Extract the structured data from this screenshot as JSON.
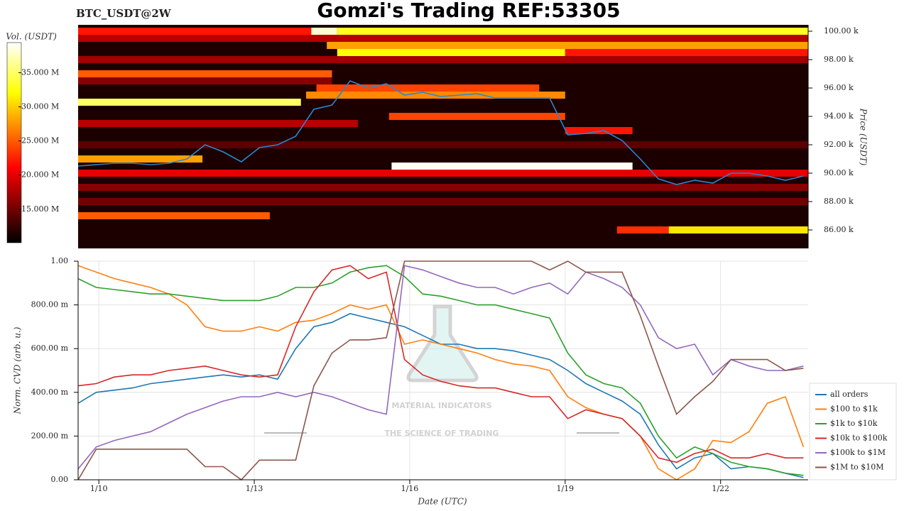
{
  "title": "Gomzi's Trading REF:53305",
  "watermark": {
    "brand": "MATERIAL INDICATORS",
    "tagline": "THE SCIENCE OF TRADING"
  },
  "chart_data": [
    {
      "type": "heatmap",
      "title": "BTC_USDT@2W",
      "ylabel": "Price (USDT)",
      "xlim": [
        9.6,
        23.69
      ],
      "ylim": [
        84700,
        100450
      ],
      "yticks": [
        {
          "value": 100000,
          "label": "100.00 k"
        },
        {
          "value": 98000,
          "label": "98.00 k"
        },
        {
          "value": 96000,
          "label": "96.00 k"
        },
        {
          "value": 94000,
          "label": "94.00 k"
        },
        {
          "value": 92000,
          "label": "92.00 k"
        },
        {
          "value": 90000,
          "label": "90.00 k"
        },
        {
          "value": 88000,
          "label": "88.00 k"
        },
        {
          "value": 86000,
          "label": "86.00 k"
        }
      ],
      "colorbar": {
        "label": "Vol. (USDT)",
        "lim": [
          10100000,
          39400000
        ],
        "ticks": [
          {
            "value": 35000000,
            "label": "35.000 M"
          },
          {
            "value": 30000000,
            "label": "30.000 M"
          },
          {
            "value": 25000000,
            "label": "25.000 M"
          },
          {
            "value": 20000000,
            "label": "20.000 M"
          },
          {
            "value": 15000000,
            "label": "15.000 M"
          }
        ]
      },
      "bands": [
        {
          "price": 92000,
          "start": 9.6,
          "end": 23.69,
          "vol": 14000000
        },
        {
          "price": 93500,
          "start": 9.6,
          "end": 15.0,
          "vol": 18000000
        },
        {
          "price": 100000,
          "start": 9.6,
          "end": 14.1,
          "vol": 22000000
        },
        {
          "price": 100000,
          "start": 14.1,
          "end": 14.6,
          "vol": 38000000
        },
        {
          "price": 100000,
          "start": 14.6,
          "end": 23.69,
          "vol": 33000000
        },
        {
          "price": 99500,
          "start": 9.6,
          "end": 23.69,
          "vol": 18000000
        },
        {
          "price": 99000,
          "start": 14.4,
          "end": 23.69,
          "vol": 28000000
        },
        {
          "price": 98500,
          "start": 14.6,
          "end": 19.0,
          "vol": 32000000
        },
        {
          "price": 98500,
          "start": 19.0,
          "end": 23.69,
          "vol": 22000000
        },
        {
          "price": 98000,
          "start": 9.6,
          "end": 23.69,
          "vol": 17000000
        },
        {
          "price": 97000,
          "start": 9.6,
          "end": 14.5,
          "vol": 25000000
        },
        {
          "price": 96500,
          "start": 9.6,
          "end": 14.5,
          "vol": 16000000
        },
        {
          "price": 96000,
          "start": 14.2,
          "end": 18.5,
          "vol": 24000000
        },
        {
          "price": 95500,
          "start": 14.0,
          "end": 19.0,
          "vol": 27000000
        },
        {
          "price": 95000,
          "start": 9.6,
          "end": 13.9,
          "vol": 35000000
        },
        {
          "price": 94000,
          "start": 15.6,
          "end": 19.0,
          "vol": 24000000
        },
        {
          "price": 93000,
          "start": 19.0,
          "end": 20.3,
          "vol": 22000000
        },
        {
          "price": 91000,
          "start": 9.6,
          "end": 12.0,
          "vol": 28000000
        },
        {
          "price": 90000,
          "start": 9.6,
          "end": 23.69,
          "vol": 20000000
        },
        {
          "price": 90500,
          "start": 15.65,
          "end": 20.3,
          "vol": 39000000
        },
        {
          "price": 89000,
          "start": 9.6,
          "end": 23.69,
          "vol": 16000000
        },
        {
          "price": 88000,
          "start": 9.6,
          "end": 23.69,
          "vol": 15000000
        },
        {
          "price": 87000,
          "start": 9.6,
          "end": 13.3,
          "vol": 25000000
        },
        {
          "price": 86000,
          "start": 20.0,
          "end": 21.0,
          "vol": 23000000
        },
        {
          "price": 86000,
          "start": 21.0,
          "end": 23.69,
          "vol": 31000000
        }
      ],
      "price_line": {
        "color": "#2a86d0",
        "x": [
          9.6,
          9.95,
          10.3,
          10.65,
          11.0,
          11.35,
          11.7,
          12.05,
          12.4,
          12.75,
          13.1,
          13.45,
          13.8,
          14.15,
          14.5,
          14.85,
          15.2,
          15.55,
          15.9,
          16.25,
          16.6,
          16.95,
          17.3,
          17.65,
          18.0,
          18.35,
          18.7,
          19.05,
          19.4,
          19.75,
          20.1,
          20.45,
          20.8,
          21.15,
          21.5,
          21.85,
          22.2,
          22.55,
          22.9,
          23.25,
          23.6
        ],
        "values": [
          90500,
          90600,
          90700,
          90700,
          90600,
          90700,
          91000,
          92000,
          91500,
          90800,
          91800,
          92000,
          92600,
          94500,
          94800,
          96500,
          96000,
          96300,
          95500,
          95700,
          95400,
          95500,
          95600,
          95300,
          95300,
          95300,
          95300,
          92700,
          92800,
          93000,
          92300,
          91000,
          89600,
          89200,
          89500,
          89300,
          90000,
          90000,
          89800,
          89500,
          89800
        ]
      }
    },
    {
      "type": "line",
      "xlabel": "Date (UTC)",
      "ylabel": "Norm. CVD (arb. u.)",
      "xlim": [
        9.6,
        23.69
      ],
      "ylim": [
        0,
        1
      ],
      "grid": true,
      "xticks": [
        {
          "value": 10,
          "label": "1/10"
        },
        {
          "value": 13,
          "label": "1/13"
        },
        {
          "value": 16,
          "label": "1/16"
        },
        {
          "value": 19,
          "label": "1/19"
        },
        {
          "value": 22,
          "label": "1/22"
        }
      ],
      "yticks": [
        {
          "value": 0,
          "label": "0.00"
        },
        {
          "value": 0.2,
          "label": "200.00 m"
        },
        {
          "value": 0.4,
          "label": "400.00 m"
        },
        {
          "value": 0.6,
          "label": "600.00 m"
        },
        {
          "value": 0.8,
          "label": "800.00 m"
        },
        {
          "value": 1,
          "label": "1.00"
        }
      ],
      "x": [
        9.6,
        9.95,
        10.3,
        10.65,
        11.0,
        11.35,
        11.7,
        12.05,
        12.4,
        12.75,
        13.1,
        13.45,
        13.8,
        14.15,
        14.5,
        14.85,
        15.2,
        15.55,
        15.9,
        16.25,
        16.6,
        16.95,
        17.3,
        17.65,
        18.0,
        18.35,
        18.7,
        19.05,
        19.4,
        19.75,
        20.1,
        20.45,
        20.8,
        21.15,
        21.5,
        21.85,
        22.2,
        22.55,
        22.9,
        23.25,
        23.6
      ],
      "series": [
        {
          "name": "all orders",
          "color": "#1f77b4",
          "values": [
            0.35,
            0.4,
            0.41,
            0.42,
            0.44,
            0.45,
            0.46,
            0.47,
            0.48,
            0.47,
            0.48,
            0.46,
            0.6,
            0.7,
            0.72,
            0.76,
            0.74,
            0.72,
            0.7,
            0.66,
            0.62,
            0.62,
            0.6,
            0.6,
            0.59,
            0.57,
            0.55,
            0.5,
            0.44,
            0.4,
            0.36,
            0.3,
            0.16,
            0.05,
            0.1,
            0.12,
            0.05,
            0.06,
            0.05,
            0.03,
            0.01
          ]
        },
        {
          "name": "$100 to $1k",
          "color": "#ff7f0e",
          "values": [
            0.98,
            0.95,
            0.92,
            0.9,
            0.88,
            0.85,
            0.8,
            0.7,
            0.68,
            0.68,
            0.7,
            0.68,
            0.72,
            0.73,
            0.76,
            0.8,
            0.78,
            0.8,
            0.62,
            0.64,
            0.62,
            0.6,
            0.58,
            0.55,
            0.53,
            0.52,
            0.5,
            0.38,
            0.33,
            0.3,
            0.28,
            0.2,
            0.05,
            0.0,
            0.05,
            0.18,
            0.17,
            0.22,
            0.35,
            0.38,
            0.15
          ]
        },
        {
          "name": "$1k to $10k",
          "color": "#2ca02c",
          "values": [
            0.92,
            0.88,
            0.87,
            0.86,
            0.85,
            0.85,
            0.84,
            0.83,
            0.82,
            0.82,
            0.82,
            0.84,
            0.88,
            0.88,
            0.9,
            0.95,
            0.97,
            0.98,
            0.93,
            0.85,
            0.84,
            0.82,
            0.8,
            0.8,
            0.78,
            0.76,
            0.74,
            0.58,
            0.48,
            0.44,
            0.42,
            0.35,
            0.2,
            0.1,
            0.15,
            0.12,
            0.08,
            0.06,
            0.05,
            0.03,
            0.02
          ]
        },
        {
          "name": "$10k to $100k",
          "color": "#d62728",
          "values": [
            0.43,
            0.44,
            0.47,
            0.48,
            0.48,
            0.5,
            0.51,
            0.52,
            0.5,
            0.48,
            0.47,
            0.48,
            0.7,
            0.86,
            0.96,
            0.98,
            0.92,
            0.95,
            0.55,
            0.48,
            0.45,
            0.43,
            0.42,
            0.42,
            0.4,
            0.38,
            0.38,
            0.28,
            0.32,
            0.3,
            0.28,
            0.2,
            0.1,
            0.08,
            0.12,
            0.14,
            0.1,
            0.1,
            0.12,
            0.1,
            0.1
          ]
        },
        {
          "name": "$100k to $1M",
          "color": "#9467bd",
          "values": [
            0.05,
            0.15,
            0.18,
            0.2,
            0.22,
            0.26,
            0.3,
            0.33,
            0.36,
            0.38,
            0.38,
            0.4,
            0.38,
            0.4,
            0.38,
            0.35,
            0.32,
            0.3,
            0.98,
            0.96,
            0.93,
            0.9,
            0.88,
            0.88,
            0.85,
            0.88,
            0.9,
            0.85,
            0.95,
            0.92,
            0.88,
            0.8,
            0.65,
            0.6,
            0.62,
            0.48,
            0.55,
            0.52,
            0.5,
            0.5,
            0.52
          ]
        },
        {
          "name": "$1M to $10M",
          "color": "#8c564b",
          "values": [
            0.0,
            0.14,
            0.14,
            0.14,
            0.14,
            0.14,
            0.14,
            0.06,
            0.06,
            0.0,
            0.09,
            0.09,
            0.09,
            0.43,
            0.58,
            0.64,
            0.64,
            0.65,
            1.0,
            1.0,
            1.0,
            1.0,
            1.0,
            1.0,
            1.0,
            1.0,
            0.96,
            1.0,
            0.95,
            0.95,
            0.95,
            0.75,
            0.52,
            0.3,
            0.38,
            0.45,
            0.55,
            0.55,
            0.55,
            0.5,
            0.51
          ]
        }
      ]
    }
  ]
}
